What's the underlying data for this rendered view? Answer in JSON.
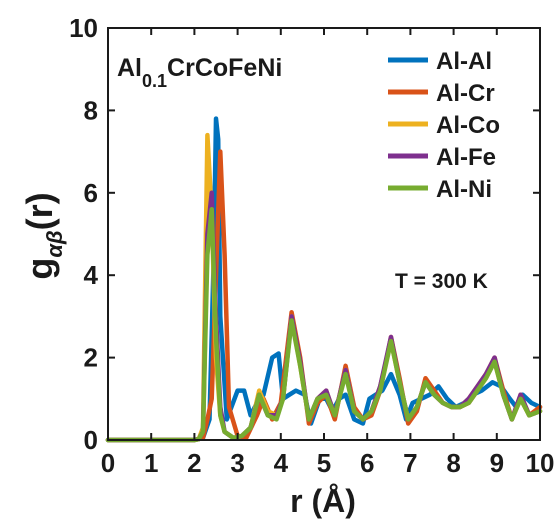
{
  "chart_data": {
    "type": "line",
    "title": "",
    "xlabel": "r (Å)",
    "ylabel": {
      "base": "g",
      "subscript": "αβ",
      "suffix": "(r)"
    },
    "xlim": [
      0,
      10
    ],
    "ylim": [
      0,
      10
    ],
    "xticks": [
      "0",
      "1",
      "2",
      "3",
      "4",
      "5",
      "6",
      "7",
      "8",
      "9",
      "10"
    ],
    "yticks": [
      "0",
      "2",
      "4",
      "6",
      "8",
      "10"
    ],
    "grid": false,
    "legend_position": "top-right",
    "annotations": {
      "composition": {
        "base": "Al",
        "subscript": "0.1",
        "rest": "CrCoFeNi"
      },
      "temperature": "T = 300 K"
    },
    "series": [
      {
        "name": "Al-Al",
        "color": "#0072BD",
        "x": [
          0,
          2.0,
          2.2,
          2.35,
          2.45,
          2.5,
          2.55,
          2.6,
          2.75,
          3.0,
          3.15,
          3.3,
          3.45,
          3.6,
          3.8,
          3.95,
          4.05,
          4.2,
          4.35,
          4.55,
          4.7,
          4.9,
          5.05,
          5.2,
          5.35,
          5.5,
          5.7,
          5.9,
          6.05,
          6.2,
          6.35,
          6.55,
          6.75,
          6.9,
          7.05,
          7.25,
          7.45,
          7.65,
          7.85,
          8.05,
          8.25,
          8.45,
          8.65,
          8.9,
          9.1,
          9.3,
          9.45,
          9.6,
          9.8,
          10.0
        ],
        "y": [
          0,
          0,
          0.05,
          0.5,
          4.5,
          7.8,
          7.3,
          3.0,
          0.5,
          1.2,
          1.2,
          0.6,
          0.9,
          1.1,
          2.0,
          2.1,
          1.0,
          1.1,
          1.2,
          1.1,
          0.4,
          1.0,
          1.0,
          0.7,
          1.0,
          1.1,
          0.5,
          0.4,
          1.0,
          1.1,
          1.2,
          1.6,
          1.1,
          0.5,
          0.9,
          1.0,
          1.1,
          1.3,
          1.0,
          0.8,
          0.9,
          1.1,
          1.2,
          1.4,
          1.3,
          1.0,
          0.8,
          1.1,
          0.9,
          0.8
        ]
      },
      {
        "name": "Al-Cr",
        "color": "#D95319",
        "x": [
          0,
          2.0,
          2.2,
          2.3,
          2.4,
          2.5,
          2.6,
          2.7,
          2.8,
          3.0,
          3.2,
          3.45,
          3.6,
          3.8,
          4.0,
          4.25,
          4.45,
          4.65,
          4.85,
          5.05,
          5.25,
          5.5,
          5.7,
          5.9,
          6.1,
          6.3,
          6.55,
          6.75,
          6.95,
          7.15,
          7.35,
          7.55,
          7.75,
          7.95,
          8.15,
          8.35,
          8.55,
          8.75,
          8.95,
          9.15,
          9.35,
          9.55,
          9.75,
          10.0
        ],
        "y": [
          0,
          0,
          0.05,
          0.5,
          1.0,
          4.0,
          7.0,
          4.5,
          0.8,
          0.1,
          0.05,
          0.6,
          1.0,
          0.5,
          0.9,
          3.1,
          2.0,
          0.4,
          0.9,
          1.1,
          0.5,
          1.8,
          0.8,
          0.5,
          0.6,
          1.2,
          2.5,
          1.5,
          0.4,
          0.7,
          1.5,
          1.2,
          0.9,
          0.8,
          0.8,
          0.9,
          1.2,
          1.6,
          2.0,
          1.2,
          0.5,
          1.1,
          0.6,
          0.8
        ]
      },
      {
        "name": "Al-Co",
        "color": "#EDB120",
        "x": [
          0,
          2.0,
          2.1,
          2.2,
          2.3,
          2.4,
          2.5,
          2.6,
          2.7,
          2.9,
          3.1,
          3.3,
          3.5,
          3.7,
          3.9,
          4.05,
          4.25,
          4.45,
          4.65,
          4.85,
          5.05,
          5.25,
          5.5,
          5.7,
          5.9,
          6.1,
          6.3,
          6.55,
          6.75,
          6.95,
          7.15,
          7.35,
          7.55,
          7.75,
          7.95,
          8.15,
          8.35,
          8.55,
          8.75,
          8.95,
          9.15,
          9.35,
          9.55,
          9.75,
          10.0
        ],
        "y": [
          0,
          0,
          0.02,
          0.3,
          7.4,
          5.5,
          2.0,
          0.6,
          0.2,
          0.05,
          0.1,
          0.3,
          1.2,
          0.7,
          0.6,
          1.0,
          3.0,
          1.8,
          0.5,
          1.0,
          1.2,
          0.6,
          1.7,
          0.7,
          0.5,
          0.7,
          1.3,
          2.4,
          1.4,
          0.5,
          0.8,
          1.4,
          1.1,
          0.9,
          0.8,
          0.8,
          1.0,
          1.3,
          1.6,
          1.9,
          1.1,
          0.5,
          1.0,
          0.6,
          0.7
        ]
      },
      {
        "name": "Al-Fe",
        "color": "#7E2F8E",
        "x": [
          0,
          2.0,
          2.1,
          2.2,
          2.3,
          2.4,
          2.5,
          2.6,
          2.7,
          2.9,
          3.1,
          3.3,
          3.5,
          3.7,
          3.9,
          4.05,
          4.25,
          4.45,
          4.65,
          4.85,
          5.05,
          5.25,
          5.5,
          5.7,
          5.9,
          6.1,
          6.3,
          6.55,
          6.75,
          6.95,
          7.15,
          7.35,
          7.55,
          7.75,
          7.95,
          8.15,
          8.35,
          8.55,
          8.75,
          8.95,
          9.15,
          9.35,
          9.55,
          9.75,
          10.0
        ],
        "y": [
          0,
          0,
          0.02,
          0.2,
          5.0,
          6.0,
          3.0,
          0.8,
          0.2,
          0.05,
          0.1,
          0.3,
          1.1,
          0.6,
          0.6,
          1.0,
          3.0,
          1.9,
          0.5,
          1.0,
          1.2,
          0.6,
          1.7,
          0.7,
          0.5,
          0.7,
          1.3,
          2.5,
          1.4,
          0.5,
          0.8,
          1.4,
          1.1,
          0.9,
          0.8,
          0.8,
          1.0,
          1.3,
          1.6,
          2.0,
          1.1,
          0.5,
          1.1,
          0.6,
          0.7
        ]
      },
      {
        "name": "Al-Ni",
        "color": "#77AC30",
        "x": [
          0,
          2.0,
          2.1,
          2.2,
          2.3,
          2.4,
          2.5,
          2.6,
          2.7,
          2.9,
          3.1,
          3.3,
          3.5,
          3.7,
          3.9,
          4.05,
          4.25,
          4.45,
          4.65,
          4.85,
          5.05,
          5.25,
          5.5,
          5.7,
          5.9,
          6.1,
          6.3,
          6.55,
          6.75,
          6.95,
          7.15,
          7.35,
          7.55,
          7.75,
          7.95,
          8.15,
          8.35,
          8.55,
          8.75,
          8.95,
          9.15,
          9.35,
          9.55,
          9.75,
          10.0
        ],
        "y": [
          0,
          0,
          0.02,
          0.2,
          4.5,
          5.6,
          2.5,
          0.6,
          0.2,
          0.05,
          0.1,
          0.3,
          1.1,
          0.6,
          0.5,
          1.0,
          2.9,
          1.8,
          0.5,
          1.0,
          1.1,
          0.6,
          1.6,
          0.7,
          0.5,
          0.7,
          1.2,
          2.4,
          1.4,
          0.5,
          0.8,
          1.4,
          1.1,
          0.9,
          0.8,
          0.8,
          0.9,
          1.2,
          1.5,
          1.9,
          1.1,
          0.5,
          1.0,
          0.6,
          0.7
        ]
      }
    ]
  }
}
